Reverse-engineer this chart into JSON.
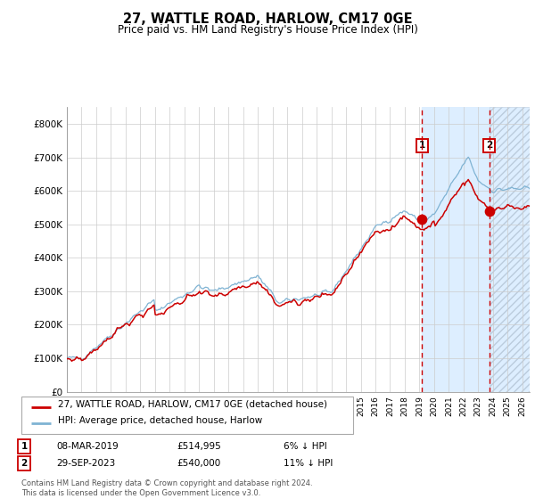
{
  "title": "27, WATTLE ROAD, HARLOW, CM17 0GE",
  "subtitle": "Price paid vs. HM Land Registry's House Price Index (HPI)",
  "legend_line1": "27, WATTLE ROAD, HARLOW, CM17 0GE (detached house)",
  "legend_line2": "HPI: Average price, detached house, Harlow",
  "annotation1_date": "08-MAR-2019",
  "annotation1_price": "£514,995",
  "annotation1_hpi": "6% ↓ HPI",
  "annotation2_date": "29-SEP-2023",
  "annotation2_price": "£540,000",
  "annotation2_hpi": "11% ↓ HPI",
  "footnote": "Contains HM Land Registry data © Crown copyright and database right 2024.\nThis data is licensed under the Open Government Licence v3.0.",
  "red_color": "#cc0000",
  "blue_color": "#7fb3d3",
  "highlight_color": "#ddeeff",
  "marker1_date_num": 2019.18,
  "marker1_value": 514995,
  "marker2_date_num": 2023.74,
  "marker2_value": 540000,
  "vline1_x": 2019.18,
  "vline2_x": 2023.74,
  "xmin": 1995.0,
  "xmax": 2026.5,
  "ymin": 0,
  "ymax": 850000,
  "yticks": [
    0,
    100000,
    200000,
    300000,
    400000,
    500000,
    600000,
    700000,
    800000
  ],
  "ytick_labels": [
    "£0",
    "£100K",
    "£200K",
    "£300K",
    "£400K",
    "£500K",
    "£600K",
    "£700K",
    "£800K"
  ]
}
